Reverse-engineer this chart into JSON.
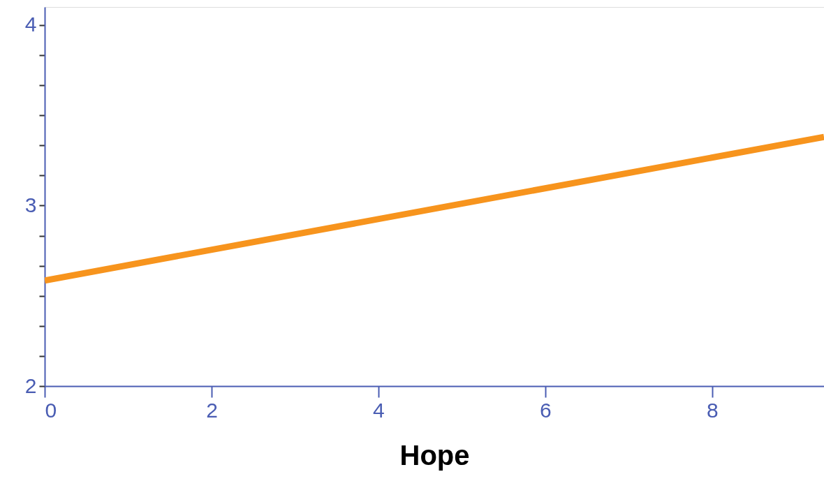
{
  "chart_data": {
    "type": "line",
    "xlabel": "Hope",
    "x": [
      0,
      9.34
    ],
    "series": [
      {
        "color": "#f7941d",
        "values": [
          2.585,
          3.38
        ]
      }
    ],
    "xlim": [
      0,
      9.34
    ],
    "ylim": [
      2,
      4.1
    ],
    "xticks": [
      0,
      2,
      4,
      6,
      8
    ],
    "yticks": [
      2,
      {
        "value": 2.1667,
        "label": null
      },
      {
        "value": 2.3333,
        "label": null
      },
      {
        "value": 2.5,
        "label": null
      },
      {
        "value": 2.6667,
        "label": null
      },
      {
        "value": 2.8333,
        "label": null
      },
      3,
      {
        "value": 3.1667,
        "label": null
      },
      {
        "value": 3.3333,
        "label": null
      },
      {
        "value": 3.5,
        "label": null
      },
      {
        "value": 3.6667,
        "label": null
      },
      {
        "value": 3.8333,
        "label": null
      },
      4
    ],
    "grid": false,
    "marker": "none",
    "line_style": "solid"
  }
}
